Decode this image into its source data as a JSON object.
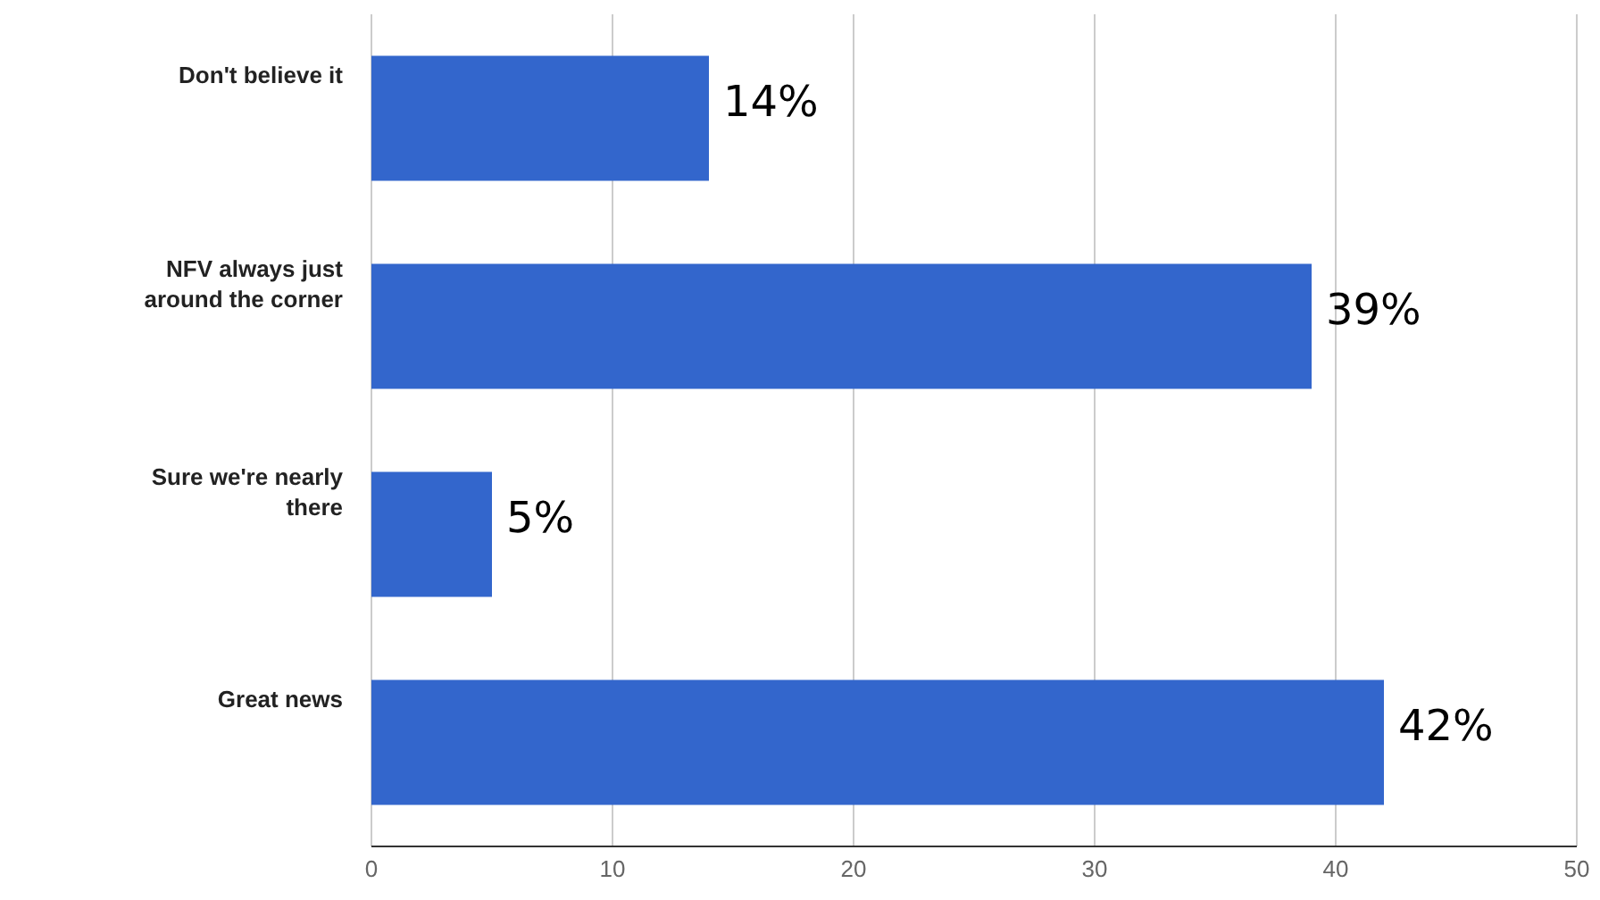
{
  "chart_data": {
    "type": "bar",
    "orientation": "horizontal",
    "categories": [
      "Don't believe it",
      "NFV always just around the corner",
      "Sure we're nearly there",
      "Great news"
    ],
    "values": [
      14,
      39,
      5,
      42
    ],
    "value_labels": [
      "14%",
      "39%",
      "5%",
      "42%"
    ],
    "color": "#3366cc",
    "xlim": [
      0,
      50
    ],
    "xticks": [
      0,
      10,
      20,
      30,
      40,
      50
    ],
    "grid": "x"
  }
}
